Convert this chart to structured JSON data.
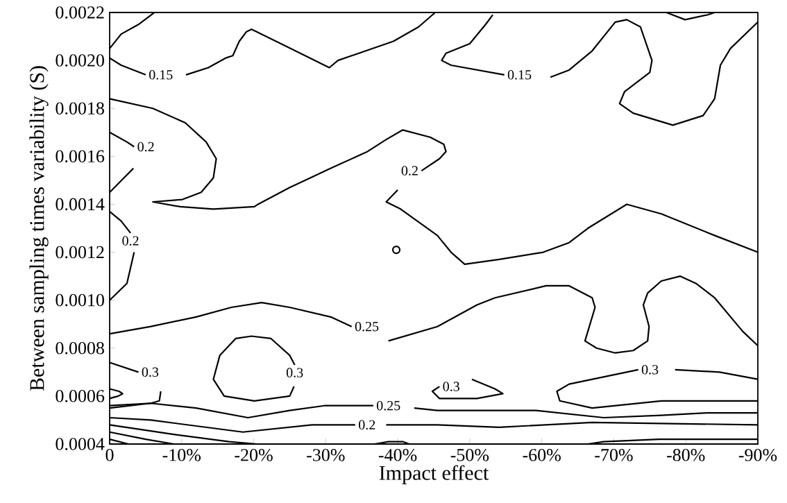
{
  "chart_data": {
    "type": "line",
    "xlabel": "Impact effect",
    "ylabel": "Between sampling times variability (S)",
    "xlim": [
      0,
      -90
    ],
    "ylim": [
      0.0004,
      0.0022
    ],
    "xticks": [
      0,
      {
        "value": -10,
        "label": "-10%"
      },
      {
        "value": -20,
        "label": "-20%"
      },
      {
        "value": -30,
        "label": "-30%"
      },
      {
        "value": -40,
        "label": "-40%"
      },
      {
        "value": -50,
        "label": "-50%"
      },
      {
        "value": -60,
        "label": "-60%"
      },
      {
        "value": -70,
        "label": "-70%"
      },
      {
        "value": -80,
        "label": "-80%"
      },
      {
        "value": -90,
        "label": "-90%"
      }
    ],
    "yticks": [
      0.0004,
      0.0006,
      0.0008,
      {
        "value": 0.001,
        "label": "0.0010"
      },
      0.0012,
      0.0014,
      0.0016,
      0.0018,
      {
        "value": 0.002,
        "label": "0.0020"
      },
      0.0022
    ],
    "legend": false,
    "grid": false,
    "series": [
      {
        "color": "#000000",
        "x": [
          0,
          -1.6,
          -4.0,
          -6.2
        ],
        "values": [
          0.00205,
          0.00211,
          0.00215,
          0.0022
        ]
      },
      {
        "name": "0.15",
        "color": "#000000",
        "x": [
          0,
          -1.6,
          -5.0
        ],
        "values": [
          0.00201,
          0.00198,
          0.00194
        ]
      },
      {
        "color": "#000000",
        "x": [
          -10.6,
          -13.7,
          -16.1,
          -17.1,
          -18.0,
          -19.0,
          -19.7,
          -20.4,
          -25.1,
          -30.5,
          -31.7,
          -34.6,
          -39.4,
          -42.9,
          -45.2
        ],
        "values": [
          0.00194,
          0.00197,
          0.00201,
          0.00202,
          0.00208,
          0.00212,
          0.00213,
          0.00212,
          0.00205,
          0.00197,
          0.002,
          0.00203,
          0.00208,
          0.00214,
          0.0022
        ]
      },
      {
        "name": "0.15",
        "color": "#000000",
        "x": [
          -53.2,
          -52.2,
          -50.0,
          -46.7,
          -46.1,
          -47.4,
          -54.8
        ],
        "values": [
          0.00219,
          0.00215,
          0.00207,
          0.00203,
          0.002,
          0.00198,
          0.00194
        ]
      },
      {
        "color": "#000000",
        "x": [
          -61.2,
          -63.8,
          -67.0,
          -70.2,
          -71.8,
          -73.7,
          -75.3,
          -75.0,
          -71.5,
          -70.8,
          -72.7,
          -78.2,
          -82.4,
          -84.0,
          -84.8,
          -86.2,
          -90
        ],
        "values": [
          0.00193,
          0.00196,
          0.00204,
          0.00216,
          0.00217,
          0.00214,
          0.002,
          0.00195,
          0.00187,
          0.00182,
          0.00178,
          0.00173,
          0.00177,
          0.00184,
          0.00198,
          0.00205,
          0.00216
        ]
      },
      {
        "color": "#000000",
        "x": [
          -77.3,
          -79.9,
          -83.0,
          -84.0
        ],
        "values": [
          0.0022,
          0.00217,
          0.00219,
          0.0022
        ]
      },
      {
        "name": "0.2",
        "color": "#000000",
        "x": [
          0,
          -6.0,
          -10.5,
          -13.4,
          -14.8,
          -14.4,
          -12.7,
          -10.1,
          -6.0,
          -9.8,
          -14.4,
          -20.1,
          -20.6,
          -25.0,
          -30.7,
          -35.8,
          -38.4,
          -40.7,
          -44.5,
          -46.4,
          -46.7,
          -45.8,
          -43.3
        ],
        "values": [
          0.00184,
          0.0018,
          0.00174,
          0.00166,
          0.00159,
          0.00151,
          0.00145,
          0.00142,
          0.00141,
          0.00139,
          0.00138,
          0.00139,
          0.0014,
          0.00147,
          0.00155,
          0.00162,
          0.00167,
          0.00171,
          0.00168,
          0.00165,
          0.00162,
          0.00159,
          0.00154
        ]
      },
      {
        "color": "#000000",
        "x": [
          -40.0,
          -38.4,
          -40.4,
          -45.5,
          -47.4,
          -49.3,
          -54.1,
          -60.2,
          -63.8,
          -66.4,
          -71.8,
          -76.6,
          -84.0,
          -90
        ],
        "values": [
          0.00146,
          0.00141,
          0.00138,
          0.00127,
          0.0012,
          0.00115,
          0.00117,
          0.0012,
          0.00124,
          0.0013,
          0.0014,
          0.00136,
          0.00127,
          0.0012
        ]
      },
      {
        "name": "0.2",
        "color": "#000000",
        "x": [
          0,
          -2.4,
          -3.4
        ],
        "values": [
          0.0017,
          0.00166,
          0.00164
        ]
      },
      {
        "color": "#000000",
        "x": [
          -3.3,
          0
        ],
        "values": [
          0.00155,
          0.00145
        ]
      },
      {
        "name": "0.2",
        "color": "#000000",
        "x": [
          0,
          -1.6,
          -2.9
        ],
        "values": [
          0.00137,
          0.00133,
          0.00128
        ]
      },
      {
        "color": "#000000",
        "x": [
          -3.4,
          -2.4,
          0
        ],
        "values": [
          0.0012,
          0.00107,
          0.001
        ]
      },
      {
        "name": "0.25",
        "color": "#000000",
        "x": [
          0,
          -5.7,
          -12.0,
          -16.9,
          -21.1,
          -25.0,
          -30.7,
          -33.6
        ],
        "values": [
          0.00086,
          0.00089,
          0.00093,
          0.00097,
          0.00099,
          0.00097,
          0.00093,
          0.00089
        ]
      },
      {
        "color": "#000000",
        "x": [
          -38.7,
          -45.5,
          -51.0,
          -53.5,
          -60.6,
          -63.8,
          -67.0,
          -67.4,
          -66.4,
          -66.0,
          -67.6,
          -70.2,
          -72.7,
          -74.7,
          -74.9,
          -74.1,
          -74.7,
          -76.6,
          -79.2,
          -81.4,
          -84.0,
          -87.9,
          -90
        ],
        "values": [
          0.00083,
          0.00089,
          0.00098,
          0.00101,
          0.00106,
          0.00106,
          0.00101,
          0.00097,
          0.00087,
          0.00083,
          0.0008,
          0.00078,
          0.00079,
          0.00083,
          0.00089,
          0.00098,
          0.00103,
          0.00108,
          0.0011,
          0.00107,
          0.00101,
          0.00087,
          0.00081
        ]
      },
      {
        "name": "0.3",
        "color": "#000000",
        "x": [
          -25.6,
          -25.0,
          -20.1,
          -15.9,
          -14.4,
          -15.3,
          -17.5,
          -19.7,
          -22.4,
          -25.0,
          -25.7
        ],
        "values": [
          0.00064,
          0.0006,
          0.00058,
          0.0006,
          0.00067,
          0.00077,
          0.00084,
          0.00085,
          0.00084,
          0.00077,
          0.00073
        ]
      },
      {
        "name": "0.3",
        "color": "#000000",
        "x": [
          0,
          -4.0
        ],
        "values": [
          0.00074,
          0.0007
        ]
      },
      {
        "color": "#000000",
        "x": [
          -7.1,
          -6.9,
          -5.7,
          0
        ],
        "values": [
          0.00062,
          0.00058,
          0.00057,
          0.00055
        ]
      },
      {
        "color": "#000000",
        "x": [
          0,
          -1.3,
          -1.8,
          -1.2,
          0
        ],
        "values": [
          0.00063,
          0.00062,
          0.00061,
          0.0006,
          0.00059
        ]
      },
      {
        "name": "0.25",
        "color": "#000000",
        "x": [
          0,
          -5.7,
          -12.0,
          -19.2,
          -25.0,
          -29.8,
          -36.6
        ],
        "values": [
          0.00056,
          0.00057,
          0.00055,
          0.00051,
          0.00054,
          0.00056,
          0.00056
        ]
      },
      {
        "color": "#000000",
        "x": [
          -42.3,
          -45.5,
          -51.0,
          -59.2,
          -68.6,
          -76.6,
          -83.0,
          -90
        ],
        "values": [
          0.00055,
          0.00054,
          0.00054,
          0.00054,
          0.00051,
          0.00052,
          0.00053,
          0.00053
        ]
      },
      {
        "name": "0.3",
        "color": "#000000",
        "x": [
          -90,
          -76.6,
          -67.0,
          -62.5,
          -62.1,
          -63.8,
          -73.4
        ],
        "values": [
          0.00058,
          0.00058,
          0.00055,
          0.00058,
          0.00062,
          0.00065,
          0.00071
        ]
      },
      {
        "color": "#000000",
        "x": [
          -78.5,
          -84.7,
          -90
        ],
        "values": [
          0.00071,
          0.0007,
          0.00067
        ]
      },
      {
        "name": "0.3",
        "color": "#000000",
        "x": [
          -50.3,
          -53.5,
          -54.6,
          -51.0,
          -45.8,
          -44.8,
          -45.8
        ],
        "values": [
          0.00067,
          0.00063,
          0.00061,
          0.00059,
          0.00059,
          0.00062,
          0.00064
        ]
      },
      {
        "name": "0.2",
        "color": "#000000",
        "x": [
          0,
          -5.7,
          -18.5,
          -28.1,
          -34.1
        ],
        "values": [
          0.00051,
          0.0005,
          0.00045,
          0.00048,
          0.00048
        ]
      },
      {
        "color": "#000000",
        "x": [
          -38.4,
          -45.5,
          -54.1,
          -67.0,
          -90
        ],
        "values": [
          0.00048,
          0.00048,
          0.00047,
          0.00049,
          0.00048
        ]
      },
      {
        "color": "#000000",
        "x": [
          0,
          -8.9,
          -16.6,
          -20.4
        ],
        "values": [
          0.00048,
          0.00044,
          0.00041,
          0.0004
        ]
      },
      {
        "color": "#000000",
        "x": [
          0,
          -5.0,
          -8.9
        ],
        "values": [
          0.00045,
          0.00042,
          0.0004
        ]
      },
      {
        "color": "#000000",
        "x": [
          0,
          -2.6
        ],
        "values": [
          0.00042,
          0.0004
        ]
      },
      {
        "color": "#000000",
        "x": [
          -66.4,
          -68.6,
          -76.3,
          -90
        ],
        "values": [
          0.0004,
          0.00041,
          0.00042,
          0.00042
        ]
      },
      {
        "color": "#000000",
        "x": [
          -36.8,
          -38.7,
          -40.7,
          -41.6
        ],
        "values": [
          0.0004,
          0.00041,
          0.00041,
          0.0004
        ]
      },
      {
        "type": "scatter",
        "marker": "circle",
        "color": "#000000",
        "x": [
          -39.8
        ],
        "values": [
          0.00121
        ]
      }
    ]
  }
}
